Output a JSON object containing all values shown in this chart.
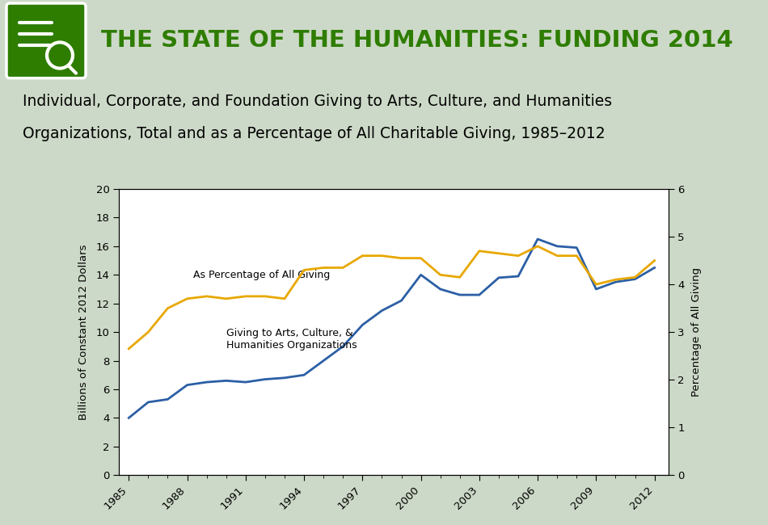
{
  "years": [
    1985,
    1986,
    1987,
    1988,
    1989,
    1990,
    1991,
    1992,
    1993,
    1994,
    1995,
    1996,
    1997,
    1998,
    1999,
    2000,
    2001,
    2002,
    2003,
    2004,
    2005,
    2006,
    2007,
    2008,
    2009,
    2010,
    2011,
    2012
  ],
  "giving_billions": [
    4.0,
    5.1,
    5.3,
    6.3,
    6.5,
    6.6,
    6.5,
    6.7,
    6.8,
    7.0,
    8.0,
    9.0,
    10.5,
    11.5,
    12.2,
    14.0,
    13.0,
    12.6,
    12.6,
    13.8,
    13.9,
    16.5,
    16.0,
    15.9,
    13.0,
    13.5,
    13.7,
    14.5
  ],
  "pct_all_giving": [
    2.65,
    3.0,
    3.5,
    3.7,
    3.75,
    3.7,
    3.75,
    3.75,
    3.7,
    4.3,
    4.35,
    4.35,
    4.6,
    4.6,
    4.55,
    4.55,
    4.2,
    4.15,
    4.7,
    4.65,
    4.6,
    4.8,
    4.6,
    4.6,
    4.0,
    4.1,
    4.15,
    4.5
  ],
  "blue_color": "#2B5FA5",
  "gold_color": "#E8A800",
  "background_color": "#CDD9C8",
  "header_bg": "#3A3A3A",
  "green_accent": "#2E7D00",
  "green_stripe": "#1E7A00",
  "header_title": "THE STATE OF THE HUMANITIES: FUNDING 2014",
  "chart_title_line1": "Individual, Corporate, and Foundation Giving to Arts, Culture, and Humanities",
  "chart_title_line2": "Organizations, Total and as a Percentage of All Charitable Giving, 1985–2012",
  "ylabel_left": "Billions of Constant 2012 Dollars",
  "ylabel_right": "Percentage of All Giving",
  "ylim_left": [
    0,
    20
  ],
  "ylim_right": [
    0,
    6
  ],
  "yticks_left": [
    0,
    2,
    4,
    6,
    8,
    10,
    12,
    14,
    16,
    18,
    20
  ],
  "yticks_right": [
    0,
    1,
    2,
    3,
    4,
    5,
    6
  ],
  "xticks": [
    1985,
    1988,
    1991,
    1994,
    1997,
    2000,
    2003,
    2006,
    2009,
    2012
  ],
  "label_blue": "Giving to Arts, Culture, &\nHumanities Organizations",
  "label_gold": "As Percentage of All Giving"
}
